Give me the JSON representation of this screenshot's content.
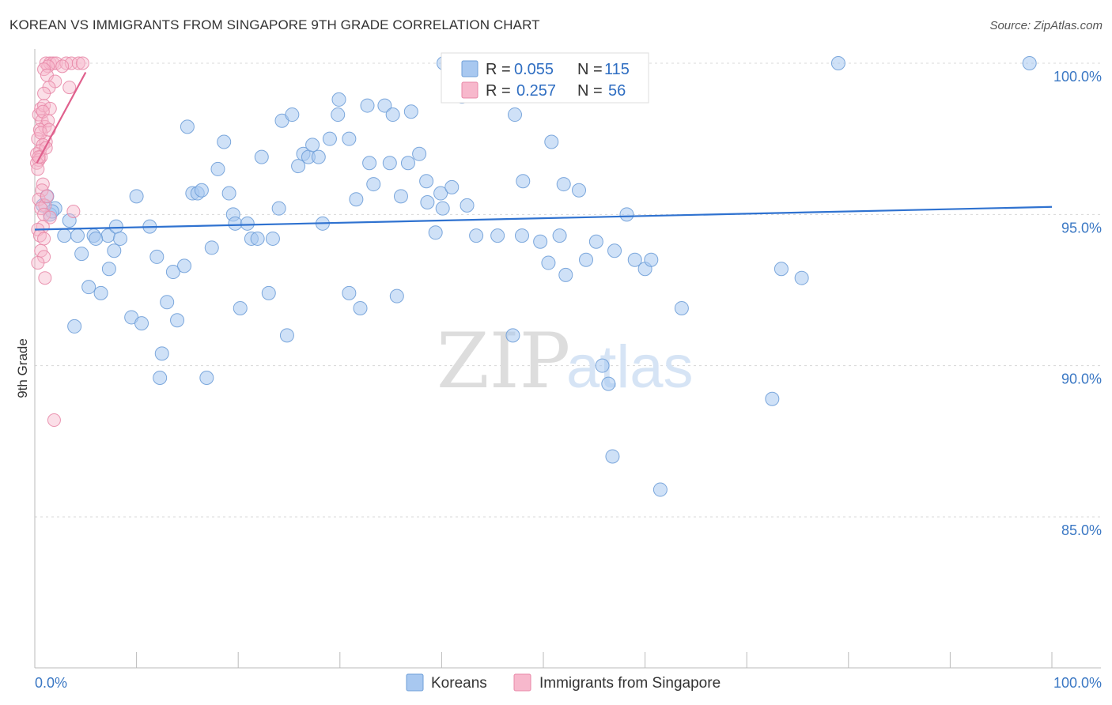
{
  "header": {
    "title": "KOREAN VS IMMIGRANTS FROM SINGAPORE 9TH GRADE CORRELATION CHART",
    "source": "Source: ZipAtlas.com"
  },
  "legend_top": {
    "rows": [
      {
        "r_label": "R = ",
        "r_value": "0.055",
        "n_label": "N = ",
        "n_value": "115",
        "color": "#a8c8f0",
        "border": "#6f9fd8"
      },
      {
        "r_label": "R = ",
        "r_value": "0.257",
        "n_label": "N = ",
        "n_value": "56",
        "color": "#f7b8cc",
        "border": "#e889a8"
      }
    ]
  },
  "legend_bottom": {
    "items": [
      {
        "label": "Koreans",
        "color": "#a8c8f0",
        "border": "#6f9fd8"
      },
      {
        "label": "Immigrants from Singapore",
        "color": "#f7b8cc",
        "border": "#e889a8"
      }
    ]
  },
  "watermark": {
    "zip": "ZIP",
    "atlas": "atlas"
  },
  "chart_data": {
    "type": "scatter",
    "title": "KOREAN VS IMMIGRANTS FROM SINGAPORE 9TH GRADE CORRELATION CHART",
    "xlabel": "",
    "ylabel": "9th Grade",
    "xlim": [
      0,
      100
    ],
    "ylim": [
      80.5,
      100.8
    ],
    "x_tick_labels": [
      {
        "value": 0,
        "label": "0.0%"
      },
      {
        "value": 100,
        "label": "100.0%"
      }
    ],
    "y_tick_labels": [
      {
        "value": 100,
        "label": "100.0%"
      },
      {
        "value": 95,
        "label": "95.0%"
      },
      {
        "value": 90,
        "label": "90.0%"
      },
      {
        "value": 85,
        "label": "85.0%"
      }
    ],
    "grid": true,
    "series": [
      {
        "name": "Koreans",
        "color": "#a8c8f0",
        "stroke": "#6f9fd8",
        "trend_color": "#2f72d0",
        "trend": {
          "x0": 0,
          "y0": 94.5,
          "x1": 100,
          "y1": 95.25
        },
        "points": [
          [
            2.0,
            95.2
          ],
          [
            1.5,
            95.0
          ],
          [
            1.2,
            95.6
          ],
          [
            0.8,
            95.3
          ],
          [
            1.7,
            95.1
          ],
          [
            3.4,
            94.8
          ],
          [
            2.9,
            94.3
          ],
          [
            4.2,
            94.3
          ],
          [
            4.6,
            93.7
          ],
          [
            5.8,
            94.3
          ],
          [
            7.2,
            94.3
          ],
          [
            6.0,
            94.2
          ],
          [
            8.0,
            94.6
          ],
          [
            8.4,
            94.2
          ],
          [
            7.8,
            93.8
          ],
          [
            5.3,
            92.6
          ],
          [
            6.5,
            92.4
          ],
          [
            7.3,
            93.2
          ],
          [
            3.9,
            91.3
          ],
          [
            9.5,
            91.6
          ],
          [
            10.5,
            91.4
          ],
          [
            11.3,
            94.6
          ],
          [
            12.0,
            93.6
          ],
          [
            13.0,
            92.1
          ],
          [
            13.6,
            93.1
          ],
          [
            14.0,
            91.5
          ],
          [
            14.7,
            93.3
          ],
          [
            12.5,
            90.4
          ],
          [
            12.3,
            89.6
          ],
          [
            16.9,
            89.6
          ],
          [
            10.0,
            95.6
          ],
          [
            15.0,
            97.9
          ],
          [
            15.5,
            95.7
          ],
          [
            16.0,
            95.7
          ],
          [
            16.4,
            95.8
          ],
          [
            17.4,
            93.9
          ],
          [
            18.0,
            96.5
          ],
          [
            18.6,
            97.4
          ],
          [
            19.1,
            95.7
          ],
          [
            19.5,
            95.0
          ],
          [
            19.7,
            94.7
          ],
          [
            20.2,
            91.9
          ],
          [
            20.9,
            94.7
          ],
          [
            21.3,
            94.2
          ],
          [
            21.9,
            94.2
          ],
          [
            22.3,
            96.9
          ],
          [
            23.4,
            94.2
          ],
          [
            23.0,
            92.4
          ],
          [
            24.0,
            95.2
          ],
          [
            24.3,
            98.1
          ],
          [
            25.3,
            98.3
          ],
          [
            24.8,
            91.0
          ],
          [
            25.9,
            96.6
          ],
          [
            26.4,
            97.0
          ],
          [
            26.9,
            96.9
          ],
          [
            27.3,
            97.3
          ],
          [
            27.9,
            96.9
          ],
          [
            28.3,
            94.7
          ],
          [
            29.0,
            97.5
          ],
          [
            29.8,
            98.3
          ],
          [
            29.9,
            98.8
          ],
          [
            30.9,
            97.5
          ],
          [
            30.9,
            92.4
          ],
          [
            31.6,
            95.5
          ],
          [
            32.0,
            91.9
          ],
          [
            32.7,
            98.6
          ],
          [
            32.9,
            96.7
          ],
          [
            33.3,
            96.0
          ],
          [
            34.4,
            98.6
          ],
          [
            34.9,
            96.7
          ],
          [
            35.2,
            98.3
          ],
          [
            35.6,
            92.3
          ],
          [
            36.0,
            95.6
          ],
          [
            36.7,
            96.7
          ],
          [
            37.0,
            98.4
          ],
          [
            37.8,
            97.0
          ],
          [
            38.5,
            96.1
          ],
          [
            38.6,
            95.4
          ],
          [
            39.4,
            94.4
          ],
          [
            39.9,
            95.7
          ],
          [
            40.1,
            95.2
          ],
          [
            40.2,
            100.0
          ],
          [
            41.0,
            95.9
          ],
          [
            42.0,
            98.9
          ],
          [
            42.5,
            95.3
          ],
          [
            43.4,
            94.3
          ],
          [
            45.5,
            94.3
          ],
          [
            47.0,
            91.0
          ],
          [
            47.2,
            98.3
          ],
          [
            47.9,
            94.3
          ],
          [
            48.0,
            96.1
          ],
          [
            49.7,
            94.1
          ],
          [
            50.5,
            93.4
          ],
          [
            50.8,
            97.4
          ],
          [
            51.6,
            94.3
          ],
          [
            52.2,
            93.0
          ],
          [
            52.0,
            96.0
          ],
          [
            53.5,
            95.8
          ],
          [
            54.2,
            93.5
          ],
          [
            55.2,
            94.1
          ],
          [
            55.8,
            90.0
          ],
          [
            56.4,
            89.4
          ],
          [
            56.8,
            87.0
          ],
          [
            57.0,
            93.8
          ],
          [
            58.2,
            95.0
          ],
          [
            59.0,
            93.5
          ],
          [
            60.0,
            93.2
          ],
          [
            60.6,
            93.5
          ],
          [
            61.5,
            85.9
          ],
          [
            63.6,
            91.9
          ],
          [
            72.5,
            88.9
          ],
          [
            73.4,
            93.2
          ],
          [
            75.4,
            92.9
          ],
          [
            79.0,
            100.0
          ],
          [
            97.8,
            100.0
          ]
        ]
      },
      {
        "name": "Immigrants from Singapore",
        "color": "#f7b8cc",
        "stroke": "#e889a8",
        "trend_color": "#e0608d",
        "trend": {
          "x0": 0.2,
          "y0": 96.7,
          "x1": 5.0,
          "y1": 99.7
        },
        "points": [
          [
            0.4,
            98.3
          ],
          [
            0.6,
            98.5
          ],
          [
            0.9,
            98.6
          ],
          [
            0.7,
            98.1
          ],
          [
            1.0,
            97.9
          ],
          [
            0.5,
            97.8
          ],
          [
            0.3,
            97.5
          ],
          [
            1.1,
            97.4
          ],
          [
            0.8,
            97.3
          ],
          [
            0.5,
            97.1
          ],
          [
            0.2,
            97.0
          ],
          [
            0.6,
            96.9
          ],
          [
            0.4,
            96.8
          ],
          [
            0.2,
            96.7
          ],
          [
            0.3,
            96.5
          ],
          [
            0.8,
            96.0
          ],
          [
            0.7,
            95.8
          ],
          [
            0.4,
            95.5
          ],
          [
            1.0,
            95.3
          ],
          [
            1.2,
            95.6
          ],
          [
            0.6,
            95.2
          ],
          [
            0.9,
            95.0
          ],
          [
            1.5,
            94.9
          ],
          [
            0.8,
            94.6
          ],
          [
            0.3,
            94.5
          ],
          [
            0.5,
            94.3
          ],
          [
            0.9,
            94.2
          ],
          [
            0.6,
            93.8
          ],
          [
            0.9,
            93.6
          ],
          [
            0.3,
            93.4
          ],
          [
            1.0,
            92.9
          ],
          [
            1.9,
            88.2
          ],
          [
            3.8,
            95.1
          ],
          [
            1.1,
            100.0
          ],
          [
            1.5,
            100.0
          ],
          [
            1.8,
            100.0
          ],
          [
            2.1,
            100.0
          ],
          [
            1.3,
            99.9
          ],
          [
            0.9,
            99.8
          ],
          [
            3.1,
            100.0
          ],
          [
            3.6,
            100.0
          ],
          [
            4.3,
            100.0
          ],
          [
            4.7,
            100.0
          ],
          [
            1.2,
            99.6
          ],
          [
            2.0,
            99.4
          ],
          [
            1.4,
            99.2
          ],
          [
            0.9,
            99.0
          ],
          [
            3.4,
            99.2
          ],
          [
            1.5,
            98.5
          ],
          [
            0.8,
            98.4
          ],
          [
            1.3,
            98.1
          ],
          [
            0.6,
            97.7
          ],
          [
            1.4,
            97.8
          ],
          [
            1.1,
            97.2
          ],
          [
            0.4,
            96.9
          ],
          [
            2.7,
            99.9
          ]
        ]
      }
    ]
  }
}
